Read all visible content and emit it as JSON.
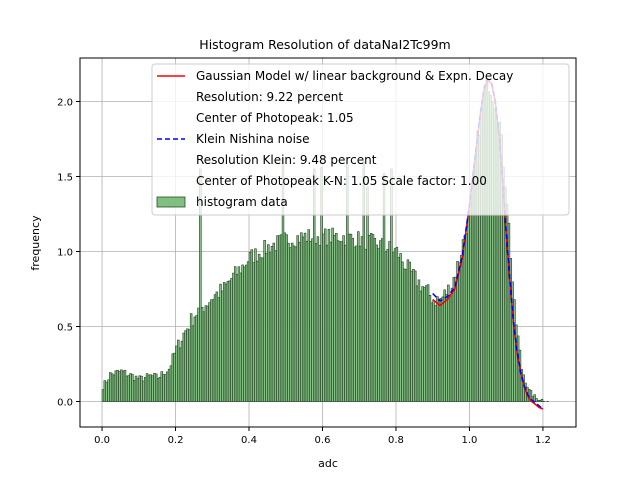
{
  "chart_data": {
    "type": "bar",
    "title": "Histogram Resolution of dataNaI2Tc99m",
    "xlabel": "adc",
    "ylabel": "frequency",
    "xlim": [
      -0.06,
      1.29
    ],
    "ylim": [
      -0.17,
      2.29
    ],
    "xticks": [
      0.0,
      0.2,
      0.4,
      0.6,
      0.8,
      1.0,
      1.2
    ],
    "xtick_labels": [
      "0.0",
      "0.2",
      "0.4",
      "0.6",
      "0.8",
      "1.0",
      "1.2"
    ],
    "yticks": [
      0.0,
      0.5,
      1.0,
      1.5,
      2.0
    ],
    "ytick_labels": [
      "0.0",
      "0.5",
      "1.0",
      "1.5",
      "2.0"
    ],
    "grid": true,
    "legend_position": "top-right",
    "legend": [
      {
        "label": "Gaussian Model w/ linear background & Expn. Decay",
        "kind": "line",
        "color": "#ff0000",
        "dash": "solid"
      },
      {
        "label": "Resolution: 9.22 percent",
        "kind": "text"
      },
      {
        "label": "Center of Photopeak: 1.05",
        "kind": "text"
      },
      {
        "label": "Klein Nishina noise",
        "kind": "line",
        "color": "#0000ff",
        "dash": "dashed"
      },
      {
        "label": "Resolution Klein: 9.48 percent",
        "kind": "text"
      },
      {
        "label": "Center of Photopeak K-N: 1.05 Scale factor: 1.00",
        "kind": "text"
      },
      {
        "label": "histogram data",
        "kind": "patch",
        "color": "#7fbf7f",
        "edgecolor": "#2a4a2a"
      }
    ],
    "bar_color": "#7fbf7f",
    "bar_edge_color": "#1f3f1f",
    "histogram": {
      "bin_width": 0.005,
      "x_start": 0.0,
      "x": [
        0.0,
        0.02,
        0.05,
        0.08,
        0.1,
        0.13,
        0.15,
        0.18,
        0.2,
        0.22,
        0.25,
        0.28,
        0.3,
        0.33,
        0.35,
        0.38,
        0.4,
        0.43,
        0.45,
        0.5,
        0.55,
        0.6,
        0.65,
        0.7,
        0.75,
        0.8,
        0.82,
        0.85,
        0.88,
        0.9,
        0.92,
        0.95,
        0.97,
        1.0,
        1.02,
        1.04,
        1.05,
        1.06,
        1.08,
        1.1,
        1.12,
        1.14,
        1.16,
        1.18,
        1.2,
        1.23
      ],
      "y": [
        0.1,
        0.18,
        0.2,
        0.17,
        0.15,
        0.17,
        0.16,
        0.22,
        0.35,
        0.45,
        0.58,
        0.65,
        0.7,
        0.75,
        0.82,
        0.9,
        0.96,
        1.0,
        1.03,
        1.08,
        1.1,
        1.1,
        1.1,
        1.08,
        1.05,
        1.0,
        0.92,
        0.82,
        0.74,
        0.68,
        0.68,
        0.78,
        0.95,
        1.28,
        1.75,
        2.08,
        2.12,
        2.05,
        1.85,
        1.35,
        0.62,
        0.22,
        0.07,
        0.02,
        0.01,
        0.0
      ],
      "spiky_bins": [
        {
          "x": 0.265,
          "y": 1.55
        },
        {
          "x": 0.49,
          "y": 1.62
        },
        {
          "x": 0.575,
          "y": 1.55
        },
        {
          "x": 0.595,
          "y": 1.56
        },
        {
          "x": 0.665,
          "y": 1.58
        },
        {
          "x": 0.71,
          "y": 1.6
        },
        {
          "x": 0.72,
          "y": 1.43
        },
        {
          "x": 0.765,
          "y": 1.52
        },
        {
          "x": 0.785,
          "y": 1.55
        }
      ]
    },
    "series": [
      {
        "name": "Gaussian Model w/ linear background & Expn. Decay",
        "color": "#ff0000",
        "dash": "solid",
        "x": [
          0.9,
          0.92,
          0.94,
          0.96,
          0.98,
          1.0,
          1.02,
          1.03,
          1.04,
          1.05,
          1.06,
          1.07,
          1.08,
          1.09,
          1.1,
          1.11,
          1.12,
          1.13,
          1.14,
          1.15,
          1.16,
          1.17,
          1.18,
          1.19,
          1.2
        ],
        "y": [
          0.68,
          0.64,
          0.68,
          0.75,
          0.95,
          1.3,
          1.72,
          1.92,
          2.08,
          2.14,
          2.12,
          2.0,
          1.78,
          1.48,
          1.12,
          0.8,
          0.52,
          0.32,
          0.18,
          0.09,
          0.03,
          0.0,
          -0.02,
          -0.04,
          -0.05
        ]
      },
      {
        "name": "Klein Nishina noise",
        "color": "#0000ff",
        "dash": "dashed",
        "x": [
          0.9,
          0.92,
          0.94,
          0.96,
          0.98,
          1.0,
          1.02,
          1.03,
          1.04,
          1.05,
          1.06,
          1.07,
          1.08,
          1.09,
          1.1,
          1.11,
          1.12,
          1.13,
          1.14,
          1.15,
          1.16,
          1.17,
          1.18,
          1.19,
          1.2
        ],
        "y": [
          0.72,
          0.67,
          0.7,
          0.76,
          0.96,
          1.31,
          1.73,
          1.93,
          2.09,
          2.15,
          2.13,
          2.01,
          1.79,
          1.49,
          1.13,
          0.81,
          0.53,
          0.33,
          0.19,
          0.1,
          0.04,
          0.01,
          -0.01,
          -0.03,
          -0.05
        ]
      }
    ]
  }
}
